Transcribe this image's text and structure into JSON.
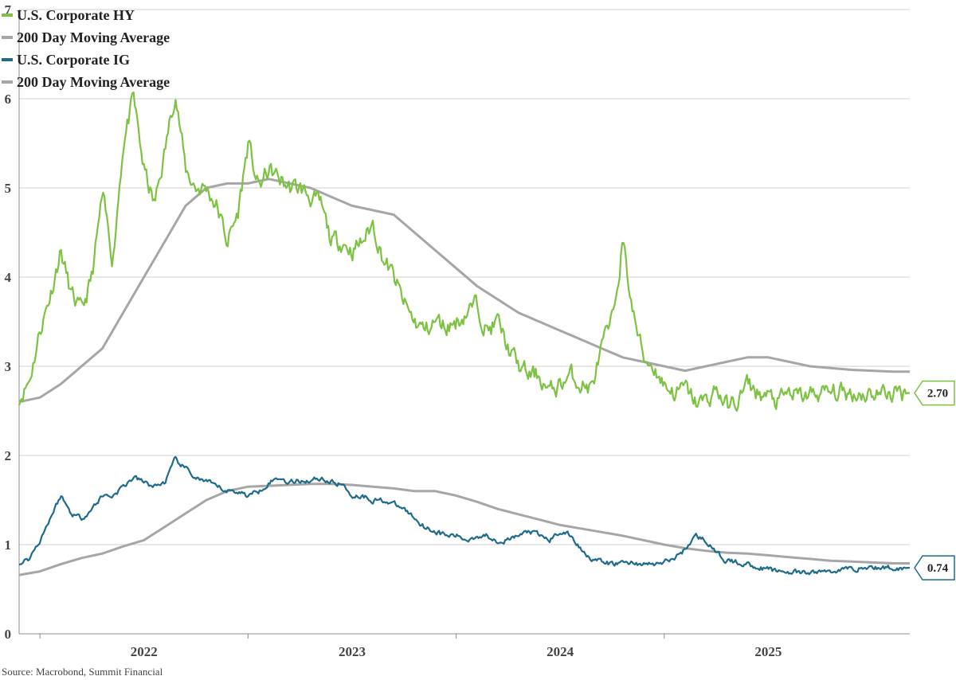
{
  "chart_data": {
    "type": "line",
    "title": "",
    "xlabel": "",
    "ylabel": "",
    "source": "Source: Macrobond, Summit Financial",
    "ylim": [
      0,
      7
    ],
    "yticks": [
      0,
      1,
      2,
      3,
      4,
      5,
      6,
      7
    ],
    "xlim": [
      2021.4,
      2025.68
    ],
    "xticks": [
      {
        "label": "2022",
        "value": 2022.0
      },
      {
        "label": "2023",
        "value": 2023.0
      },
      {
        "label": "2024",
        "value": 2024.0
      },
      {
        "label": "2025",
        "value": 2025.0
      }
    ],
    "grid": "horizontal",
    "legend_position": "top-left",
    "colors": {
      "hy": "#7dc242",
      "ig": "#1e6b8a",
      "ma": "#a6a6a6",
      "grid": "#d0d0d0",
      "axis": "#8c8c8c"
    },
    "series": [
      {
        "name": "U.S. Corporate HY",
        "color": "#7dc242",
        "x": [
          2021.4,
          2021.45,
          2021.5,
          2021.55,
          2021.6,
          2021.65,
          2021.7,
          2021.75,
          2021.8,
          2021.85,
          2021.9,
          2021.95,
          2022.0,
          2022.05,
          2022.1,
          2022.15,
          2022.2,
          2022.25,
          2022.3,
          2022.35,
          2022.4,
          2022.45,
          2022.5,
          2022.55,
          2022.6,
          2022.65,
          2022.7,
          2022.75,
          2022.8,
          2022.85,
          2022.9,
          2022.95,
          2023.0,
          2023.05,
          2023.1,
          2023.15,
          2023.2,
          2023.25,
          2023.3,
          2023.35,
          2023.4,
          2023.45,
          2023.5,
          2023.55,
          2023.6,
          2023.65,
          2023.7,
          2023.75,
          2023.8,
          2023.85,
          2023.9,
          2023.95,
          2024.0,
          2024.05,
          2024.1,
          2024.15,
          2024.2,
          2024.25,
          2024.3,
          2024.35,
          2024.4,
          2024.45,
          2024.5,
          2024.55,
          2024.6,
          2024.65,
          2024.7,
          2024.75,
          2024.8,
          2024.85,
          2024.9,
          2024.95,
          2025.0,
          2025.05,
          2025.1,
          2025.15,
          2025.2,
          2025.25,
          2025.3,
          2025.35,
          2025.4,
          2025.45,
          2025.5,
          2025.55,
          2025.6,
          2025.65,
          2025.68
        ],
        "values": [
          2.65,
          2.85,
          3.4,
          3.8,
          4.3,
          3.8,
          3.6,
          4.0,
          4.9,
          4.2,
          5.5,
          6.0,
          5.2,
          4.8,
          5.4,
          6.1,
          5.2,
          5.0,
          5.0,
          4.8,
          4.4,
          4.7,
          5.5,
          5.0,
          5.2,
          5.1,
          5.0,
          5.0,
          4.9,
          4.8,
          4.4,
          4.4,
          4.3,
          4.4,
          4.6,
          4.2,
          4.0,
          3.7,
          3.5,
          3.4,
          3.5,
          3.45,
          3.5,
          3.6,
          3.7,
          3.4,
          3.5,
          3.2,
          3.0,
          2.9,
          2.9,
          2.7,
          2.8,
          2.9,
          2.8,
          2.75,
          3.2,
          3.5,
          4.4,
          3.6,
          3.1,
          3.0,
          2.8,
          2.7,
          2.75,
          2.6,
          2.6,
          2.75,
          2.55,
          2.6,
          2.8,
          2.7,
          2.65,
          2.6,
          2.7,
          2.65,
          2.68,
          2.7,
          2.7,
          2.7,
          2.7,
          2.7,
          2.7,
          2.7,
          2.7,
          2.7,
          2.7
        ]
      },
      {
        "name": "200 Day Moving Average",
        "color": "#a6a6a6",
        "x": [
          2021.4,
          2021.5,
          2021.6,
          2021.7,
          2021.8,
          2021.9,
          2022.0,
          2022.1,
          2022.2,
          2022.3,
          2022.4,
          2022.5,
          2022.6,
          2022.7,
          2022.8,
          2022.9,
          2023.0,
          2023.1,
          2023.2,
          2023.3,
          2023.4,
          2023.5,
          2023.6,
          2023.7,
          2023.8,
          2023.9,
          2024.0,
          2024.1,
          2024.2,
          2024.3,
          2024.4,
          2024.5,
          2024.6,
          2024.7,
          2024.8,
          2024.9,
          2025.0,
          2025.1,
          2025.2,
          2025.3,
          2025.4,
          2025.5,
          2025.6,
          2025.68
        ],
        "values": [
          2.6,
          2.65,
          2.8,
          3.0,
          3.2,
          3.6,
          4.0,
          4.4,
          4.8,
          5.0,
          5.05,
          5.05,
          5.1,
          5.05,
          5.0,
          4.9,
          4.8,
          4.75,
          4.7,
          4.5,
          4.3,
          4.1,
          3.9,
          3.75,
          3.6,
          3.5,
          3.4,
          3.3,
          3.2,
          3.1,
          3.05,
          3.0,
          2.95,
          3.0,
          3.05,
          3.1,
          3.1,
          3.05,
          3.0,
          2.98,
          2.96,
          2.95,
          2.94,
          2.94
        ]
      },
      {
        "name": "U.S. Corporate IG",
        "color": "#1e6b8a",
        "x": [
          2021.4,
          2021.45,
          2021.5,
          2021.55,
          2021.6,
          2021.65,
          2021.7,
          2021.75,
          2021.8,
          2021.85,
          2021.9,
          2021.95,
          2022.0,
          2022.05,
          2022.1,
          2022.15,
          2022.2,
          2022.25,
          2022.3,
          2022.35,
          2022.4,
          2022.45,
          2022.5,
          2022.55,
          2022.6,
          2022.65,
          2022.7,
          2022.75,
          2022.8,
          2022.85,
          2022.9,
          2022.95,
          2023.0,
          2023.05,
          2023.1,
          2023.15,
          2023.2,
          2023.25,
          2023.3,
          2023.35,
          2023.4,
          2023.45,
          2023.5,
          2023.55,
          2023.6,
          2023.65,
          2023.7,
          2023.75,
          2023.8,
          2023.85,
          2023.9,
          2023.95,
          2024.0,
          2024.05,
          2024.1,
          2024.15,
          2024.2,
          2024.25,
          2024.3,
          2024.35,
          2024.4,
          2024.45,
          2024.5,
          2024.55,
          2024.6,
          2024.65,
          2024.7,
          2024.75,
          2024.8,
          2024.85,
          2024.9,
          2024.95,
          2025.0,
          2025.05,
          2025.1,
          2025.15,
          2025.2,
          2025.25,
          2025.3,
          2025.35,
          2025.4,
          2025.45,
          2025.5,
          2025.55,
          2025.6,
          2025.65,
          2025.68
        ],
        "values": [
          0.78,
          0.85,
          1.05,
          1.3,
          1.55,
          1.35,
          1.3,
          1.4,
          1.55,
          1.55,
          1.65,
          1.75,
          1.7,
          1.65,
          1.7,
          1.95,
          1.85,
          1.75,
          1.7,
          1.65,
          1.6,
          1.6,
          1.55,
          1.6,
          1.7,
          1.75,
          1.7,
          1.72,
          1.72,
          1.75,
          1.7,
          1.68,
          1.55,
          1.55,
          1.5,
          1.5,
          1.45,
          1.4,
          1.3,
          1.2,
          1.15,
          1.1,
          1.1,
          1.05,
          1.1,
          1.1,
          1.05,
          1.05,
          1.1,
          1.15,
          1.1,
          1.05,
          1.15,
          1.1,
          0.95,
          0.85,
          0.8,
          0.78,
          0.8,
          0.8,
          0.78,
          0.78,
          0.8,
          0.85,
          0.95,
          1.1,
          1.05,
          0.9,
          0.82,
          0.8,
          0.78,
          0.75,
          0.72,
          0.7,
          0.7,
          0.68,
          0.68,
          0.7,
          0.7,
          0.72,
          0.73,
          0.74,
          0.74,
          0.74,
          0.74,
          0.74,
          0.74
        ]
      },
      {
        "name": "200 Day Moving Average",
        "color": "#a6a6a6",
        "x": [
          2021.4,
          2021.5,
          2021.6,
          2021.7,
          2021.8,
          2021.9,
          2022.0,
          2022.1,
          2022.2,
          2022.3,
          2022.4,
          2022.5,
          2022.6,
          2022.7,
          2022.8,
          2022.9,
          2023.0,
          2023.1,
          2023.2,
          2023.3,
          2023.4,
          2023.5,
          2023.6,
          2023.7,
          2023.8,
          2023.9,
          2024.0,
          2024.1,
          2024.2,
          2024.3,
          2024.4,
          2024.5,
          2024.6,
          2024.7,
          2024.8,
          2024.9,
          2025.0,
          2025.1,
          2025.2,
          2025.3,
          2025.4,
          2025.5,
          2025.6,
          2025.68
        ],
        "values": [
          0.66,
          0.7,
          0.78,
          0.85,
          0.9,
          0.98,
          1.05,
          1.2,
          1.35,
          1.5,
          1.6,
          1.65,
          1.66,
          1.67,
          1.68,
          1.68,
          1.67,
          1.65,
          1.63,
          1.6,
          1.6,
          1.55,
          1.48,
          1.4,
          1.34,
          1.28,
          1.22,
          1.18,
          1.14,
          1.1,
          1.05,
          1.0,
          0.96,
          0.93,
          0.91,
          0.9,
          0.88,
          0.86,
          0.84,
          0.82,
          0.81,
          0.8,
          0.79,
          0.79
        ]
      }
    ],
    "callouts": [
      {
        "label": "2.70",
        "value": 2.7,
        "color": "#7dc242"
      },
      {
        "label": "0.74",
        "value": 0.74,
        "color": "#1e6b8a"
      }
    ]
  }
}
